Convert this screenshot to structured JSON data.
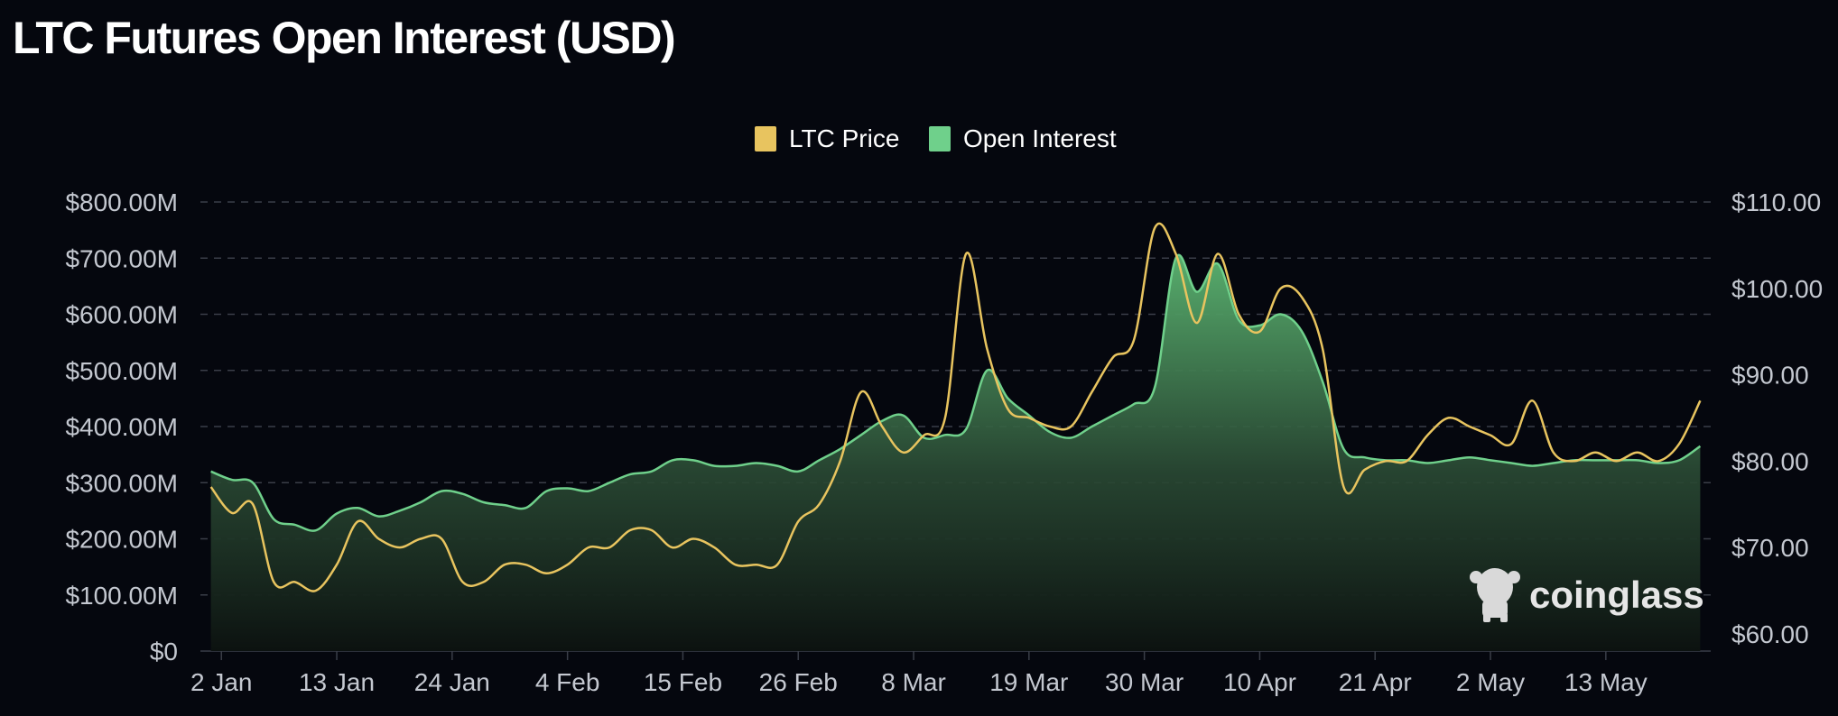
{
  "page": {
    "title": "LTC Futures Open Interest (USD)",
    "watermark": "coinglass"
  },
  "colors": {
    "background": "#05070e",
    "price_line": "#e8c45f",
    "oi_line": "#6fd08b",
    "oi_fill_top": "#5cb672",
    "oi_fill_bottom": "#0c1210",
    "grid": "#3a3e48",
    "tick_text": "#c4c8d0"
  },
  "chart_data": {
    "type": "area",
    "title": "LTC Futures Open Interest (USD)",
    "legend": {
      "placement": "top-center",
      "entries": [
        "LTC Price",
        "Open Interest"
      ]
    },
    "grid": true,
    "x": [
      "2024-01-01",
      "2024-01-03",
      "2024-01-05",
      "2024-01-07",
      "2024-01-09",
      "2024-01-11",
      "2024-01-13",
      "2024-01-15",
      "2024-01-17",
      "2024-01-19",
      "2024-01-21",
      "2024-01-23",
      "2024-01-25",
      "2024-01-27",
      "2024-01-29",
      "2024-01-31",
      "2024-02-02",
      "2024-02-04",
      "2024-02-06",
      "2024-02-08",
      "2024-02-10",
      "2024-02-12",
      "2024-02-14",
      "2024-02-16",
      "2024-02-18",
      "2024-02-20",
      "2024-02-22",
      "2024-02-24",
      "2024-02-26",
      "2024-02-28",
      "2024-03-01",
      "2024-03-03",
      "2024-03-05",
      "2024-03-07",
      "2024-03-09",
      "2024-03-11",
      "2024-03-13",
      "2024-03-15",
      "2024-03-17",
      "2024-03-19",
      "2024-03-21",
      "2024-03-23",
      "2024-03-25",
      "2024-03-27",
      "2024-03-29",
      "2024-03-31",
      "2024-04-02",
      "2024-04-04",
      "2024-04-06",
      "2024-04-08",
      "2024-04-10",
      "2024-04-12",
      "2024-04-14",
      "2024-04-16",
      "2024-04-18",
      "2024-04-20",
      "2024-04-22",
      "2024-04-24",
      "2024-04-26",
      "2024-04-28",
      "2024-04-30",
      "2024-05-02",
      "2024-05-04",
      "2024-05-06",
      "2024-05-08",
      "2024-05-10",
      "2024-05-12",
      "2024-05-14",
      "2024-05-16",
      "2024-05-18",
      "2024-05-20",
      "2024-05-22"
    ],
    "x_ticks": [
      "2 Jan",
      "13 Jan",
      "24 Jan",
      "4 Feb",
      "15 Feb",
      "26 Feb",
      "8 Mar",
      "19 Mar",
      "30 Mar",
      "10 Apr",
      "21 Apr",
      "2 May",
      "13 May"
    ],
    "x_tick_dates": [
      "2024-01-02",
      "2024-01-13",
      "2024-01-24",
      "2024-02-04",
      "2024-02-15",
      "2024-02-26",
      "2024-03-08",
      "2024-03-19",
      "2024-03-30",
      "2024-04-10",
      "2024-04-21",
      "2024-05-02",
      "2024-05-13"
    ],
    "y_left": {
      "label": "",
      "ticks": [
        "$0",
        "$100.00M",
        "$200.00M",
        "$300.00M",
        "$400.00M",
        "$500.00M",
        "$600.00M",
        "$700.00M",
        "$800.00M"
      ],
      "range": [
        0,
        800
      ]
    },
    "y_right": {
      "label": "",
      "ticks": [
        "$60.00",
        "$70.00",
        "$80.00",
        "$90.00",
        "$100.00",
        "$110.00"
      ],
      "range": [
        58,
        110
      ]
    },
    "series": [
      {
        "name": "Open Interest",
        "axis": "left",
        "units": "USD millions",
        "values": [
          320,
          305,
          300,
          235,
          225,
          215,
          245,
          255,
          240,
          250,
          265,
          285,
          280,
          265,
          260,
          255,
          285,
          290,
          285,
          300,
          315,
          320,
          340,
          340,
          330,
          330,
          335,
          330,
          320,
          340,
          360,
          385,
          410,
          420,
          380,
          385,
          395,
          500,
          450,
          420,
          390,
          380,
          400,
          420,
          440,
          470,
          700,
          640,
          690,
          590,
          580,
          600,
          570,
          480,
          360,
          345,
          340,
          340,
          335,
          340,
          345,
          340,
          335,
          330,
          335,
          340,
          340,
          340,
          340,
          335,
          340,
          365
        ]
      },
      {
        "name": "LTC Price",
        "axis": "right",
        "units": "USD",
        "values": [
          77,
          74,
          75,
          66,
          66,
          65,
          68,
          73,
          71,
          70,
          71,
          71,
          66,
          66,
          68,
          68,
          67,
          68,
          70,
          70,
          72,
          72,
          70,
          71,
          70,
          68,
          68,
          68,
          73,
          75,
          80,
          88,
          84,
          81,
          83,
          85,
          104,
          93,
          86,
          85,
          84,
          84,
          88,
          92,
          94,
          107,
          104,
          96,
          104,
          97,
          95,
          100,
          99,
          93,
          77,
          79,
          80,
          80,
          83,
          85,
          84,
          83,
          82,
          87,
          81,
          80,
          81,
          80,
          81,
          80,
          82,
          87
        ]
      }
    ]
  }
}
